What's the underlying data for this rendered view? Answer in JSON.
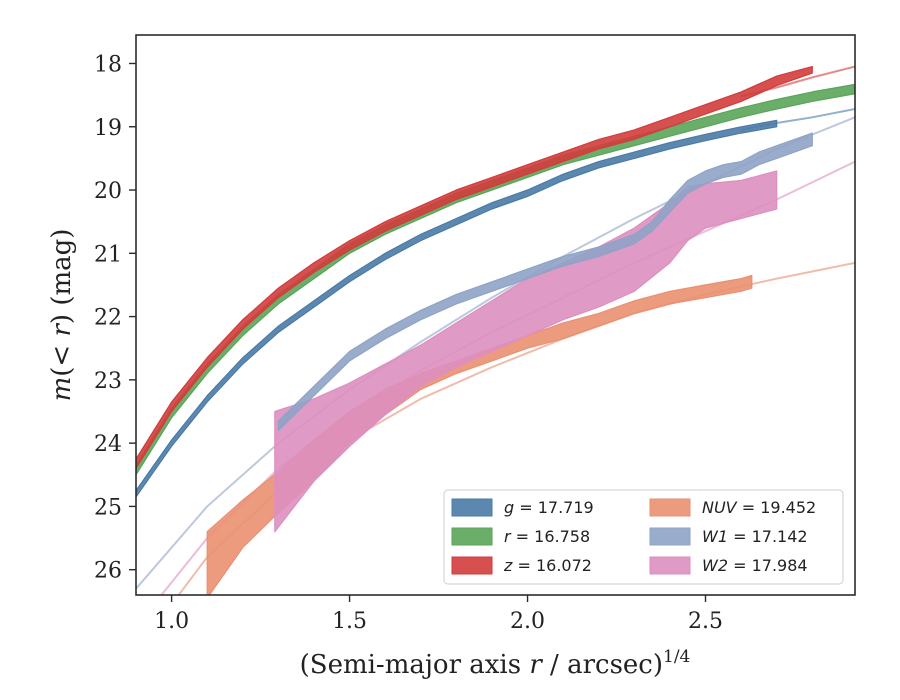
{
  "chart_data": {
    "type": "line",
    "title": "",
    "xlabel_parts": [
      "(Semi-major axis ",
      "r",
      " / arcsec)",
      "1/4"
    ],
    "ylabel_parts": [
      "m",
      "(< ",
      "r",
      ") (mag)"
    ],
    "xlim": [
      0.9,
      2.92
    ],
    "ylim": [
      26.4,
      17.55
    ],
    "y_inverted": true,
    "xticks": [
      1.0,
      1.5,
      2.0,
      2.5
    ],
    "xtick_labels": [
      "1.0",
      "1.5",
      "2.0",
      "2.5"
    ],
    "yticks": [
      18,
      19,
      20,
      21,
      22,
      23,
      24,
      25,
      26
    ],
    "ytick_labels": [
      "18",
      "19",
      "20",
      "21",
      "22",
      "23",
      "24",
      "25",
      "26"
    ],
    "grid": false,
    "legend_position": "lower-right",
    "legend_columns": 2,
    "series": [
      {
        "name": "g = 17.719",
        "band": "g",
        "mag": "17.719",
        "color": "#4a7ba7",
        "x": [
          0.9,
          1.0,
          1.1,
          1.2,
          1.3,
          1.4,
          1.5,
          1.6,
          1.7,
          1.8,
          1.9,
          2.0,
          2.1,
          2.2,
          2.3,
          2.4,
          2.5,
          2.6,
          2.7
        ],
        "y_lo": [
          24.75,
          23.95,
          23.25,
          22.65,
          22.15,
          21.75,
          21.35,
          21.0,
          20.7,
          20.45,
          20.2,
          20.0,
          19.75,
          19.55,
          19.4,
          19.25,
          19.12,
          19.0,
          18.9
        ],
        "y_hi": [
          24.85,
          24.05,
          23.35,
          22.75,
          22.25,
          21.85,
          21.45,
          21.1,
          20.8,
          20.55,
          20.3,
          20.1,
          19.85,
          19.65,
          19.5,
          19.35,
          19.22,
          19.1,
          19.0
        ],
        "model_x": [
          2.6,
          2.7,
          2.8,
          2.92
        ],
        "model_y": [
          19.05,
          18.94,
          18.85,
          18.72
        ]
      },
      {
        "name": "r = 16.758",
        "band": "r",
        "mag": "16.758",
        "color": "#5aa55a",
        "x": [
          0.9,
          1.0,
          1.1,
          1.2,
          1.3,
          1.4,
          1.5,
          1.6,
          1.7,
          1.8,
          1.9,
          2.0,
          2.1,
          2.2,
          2.3,
          2.4,
          2.5,
          2.6,
          2.7,
          2.8,
          2.92
        ],
        "y_lo": [
          24.35,
          23.45,
          22.75,
          22.15,
          21.65,
          21.25,
          20.85,
          20.55,
          20.3,
          20.05,
          19.85,
          19.65,
          19.45,
          19.3,
          19.15,
          19.0,
          18.85,
          18.7,
          18.57,
          18.45,
          18.33
        ],
        "y_hi": [
          24.5,
          23.6,
          22.9,
          22.3,
          21.8,
          21.4,
          21.0,
          20.7,
          20.45,
          20.2,
          20.0,
          19.8,
          19.6,
          19.45,
          19.3,
          19.15,
          19.0,
          18.85,
          18.72,
          18.6,
          18.48
        ],
        "model_x": [],
        "model_y": []
      },
      {
        "name": "z = 16.072",
        "band": "z",
        "mag": "16.072",
        "color": "#d13d3d",
        "x": [
          0.9,
          1.0,
          1.1,
          1.2,
          1.3,
          1.4,
          1.5,
          1.6,
          1.7,
          1.8,
          1.9,
          2.0,
          2.1,
          2.2,
          2.3,
          2.4,
          2.5,
          2.6,
          2.7,
          2.8
        ],
        "y_lo": [
          24.25,
          23.35,
          22.65,
          22.05,
          21.55,
          21.15,
          20.8,
          20.5,
          20.25,
          20.0,
          19.8,
          19.6,
          19.4,
          19.2,
          19.05,
          18.85,
          18.65,
          18.45,
          18.2,
          18.05
        ],
        "y_hi": [
          24.4,
          23.5,
          22.8,
          22.2,
          21.7,
          21.3,
          20.95,
          20.65,
          20.4,
          20.15,
          19.95,
          19.75,
          19.55,
          19.35,
          19.2,
          19.0,
          18.8,
          18.6,
          18.35,
          18.15
        ],
        "model_x": [
          2.6,
          2.7,
          2.8,
          2.92
        ],
        "model_y": [
          18.52,
          18.38,
          18.22,
          18.05
        ]
      },
      {
        "name": "NUV = 19.452",
        "band": "NUV",
        "mag": "19.452",
        "color": "#ea9071",
        "x": [
          1.1,
          1.2,
          1.3,
          1.4,
          1.5,
          1.6,
          1.7,
          1.8,
          1.9,
          2.0,
          2.1,
          2.2,
          2.3,
          2.4,
          2.5,
          2.6,
          2.63
        ],
        "y_lo": [
          25.4,
          24.9,
          24.45,
          23.95,
          23.5,
          23.15,
          22.9,
          22.7,
          22.5,
          22.3,
          22.1,
          21.95,
          21.75,
          21.6,
          21.5,
          21.4,
          21.35
        ],
        "y_hi": [
          26.45,
          25.65,
          25.1,
          24.6,
          24.0,
          23.55,
          23.15,
          22.9,
          22.7,
          22.5,
          22.35,
          22.15,
          21.95,
          21.8,
          21.7,
          21.6,
          21.55
        ],
        "model_x": [
          0.9,
          1.1,
          1.3,
          1.5,
          1.7,
          1.9,
          2.1,
          2.3,
          2.5,
          2.7,
          2.92
        ],
        "model_y": [
          27.3,
          25.8,
          24.75,
          23.95,
          23.3,
          22.8,
          22.35,
          21.95,
          21.65,
          21.4,
          21.15
        ]
      },
      {
        "name": "W1 = 17.142",
        "band": "W1",
        "mag": "17.142",
        "color": "#8fa3c5",
        "x": [
          1.3,
          1.4,
          1.5,
          1.6,
          1.7,
          1.8,
          1.9,
          2.0,
          2.1,
          2.2,
          2.3,
          2.35,
          2.4,
          2.45,
          2.5,
          2.55,
          2.6,
          2.65,
          2.7,
          2.75,
          2.8
        ],
        "y_lo": [
          23.65,
          23.1,
          22.55,
          22.2,
          21.9,
          21.65,
          21.45,
          21.25,
          21.05,
          20.9,
          20.7,
          20.5,
          20.15,
          19.85,
          19.7,
          19.6,
          19.55,
          19.4,
          19.3,
          19.2,
          19.1
        ],
        "y_hi": [
          23.8,
          23.25,
          22.7,
          22.35,
          22.05,
          21.8,
          21.6,
          21.4,
          21.2,
          21.05,
          20.85,
          20.65,
          20.35,
          20.05,
          19.9,
          19.8,
          19.75,
          19.6,
          19.5,
          19.4,
          19.3
        ],
        "model_x": [
          0.9,
          1.1,
          1.3,
          1.5,
          1.7,
          1.9,
          2.1,
          2.3,
          2.5,
          2.7,
          2.92
        ],
        "model_y": [
          26.3,
          25.0,
          24.0,
          23.15,
          22.4,
          21.7,
          21.05,
          20.45,
          19.9,
          19.35,
          18.85
        ]
      },
      {
        "name": "W2 = 17.984",
        "band": "W2",
        "mag": "17.984",
        "color": "#dd8fc0",
        "x": [
          1.29,
          1.4,
          1.5,
          1.6,
          1.7,
          1.8,
          1.9,
          2.0,
          2.1,
          2.2,
          2.3,
          2.4,
          2.45,
          2.5,
          2.6,
          2.7
        ],
        "y_lo": [
          23.5,
          23.3,
          23.05,
          22.75,
          22.45,
          22.1,
          21.75,
          21.4,
          21.15,
          20.9,
          20.6,
          20.2,
          19.95,
          19.9,
          19.85,
          19.7
        ],
        "y_hi": [
          25.4,
          24.6,
          24.05,
          23.55,
          23.1,
          22.8,
          22.55,
          22.3,
          22.05,
          21.85,
          21.6,
          21.15,
          20.8,
          20.6,
          20.45,
          20.3
        ],
        "model_x": [
          0.9,
          1.1,
          1.3,
          1.5,
          1.7,
          1.9,
          2.1,
          2.3,
          2.5,
          2.7,
          2.92
        ],
        "model_y": [
          26.9,
          25.5,
          24.4,
          23.55,
          22.85,
          22.25,
          21.7,
          21.15,
          20.65,
          20.15,
          19.55
        ]
      }
    ]
  }
}
